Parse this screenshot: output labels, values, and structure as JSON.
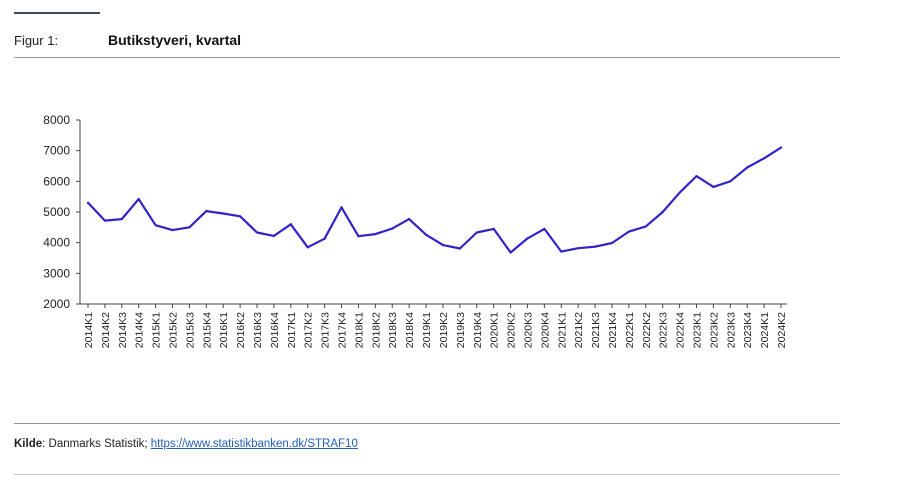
{
  "header": {
    "figure_label": "Figur 1:",
    "figure_title": "Butikstyveri, kvartal"
  },
  "footer": {
    "source_label": "Kilde",
    "source_text": ": Danmarks Statistik; ",
    "source_link": "https://www.statistikbanken.dk/STRAF10"
  },
  "colors": {
    "line": "#3023c8",
    "axis": "#444444"
  },
  "chart_data": {
    "type": "line",
    "title": "Butikstyveri, kvartal",
    "xlabel": "",
    "ylabel": "",
    "ylim": [
      2000,
      8000
    ],
    "yticks": [
      2000,
      3000,
      4000,
      5000,
      6000,
      7000,
      8000
    ],
    "grid": false,
    "legend": "none",
    "categories": [
      "2014K1",
      "2014K2",
      "2014K3",
      "2014K4",
      "2015K1",
      "2015K2",
      "2015K3",
      "2015K4",
      "2016K1",
      "2016K2",
      "2016K3",
      "2016K4",
      "2017K1",
      "2017K2",
      "2017K3",
      "2017K4",
      "2018K1",
      "2018K2",
      "2018K3",
      "2018K4",
      "2019K1",
      "2019K2",
      "2019K3",
      "2019K4",
      "2020K1",
      "2020K2",
      "2020K3",
      "2020K4",
      "2021K1",
      "2021K2",
      "2021K3",
      "2021K4",
      "2022K1",
      "2022K2",
      "2022K3",
      "2022K4",
      "2023K1",
      "2023K2",
      "2023K3",
      "2023K4",
      "2024K1",
      "2024K2"
    ],
    "series": [
      {
        "values": [
          5300,
          4720,
          4770,
          5420,
          4570,
          4410,
          4500,
          5030,
          4950,
          4860,
          4330,
          4220,
          4600,
          3850,
          4130,
          5150,
          4210,
          4280,
          4460,
          4770,
          4260,
          3920,
          3810,
          4330,
          4450,
          3680,
          4140,
          4450,
          3710,
          3820,
          3870,
          3990,
          4360,
          4530,
          5000,
          5630,
          6170,
          5820,
          6000,
          6450,
          6750,
          7100
        ]
      }
    ]
  }
}
